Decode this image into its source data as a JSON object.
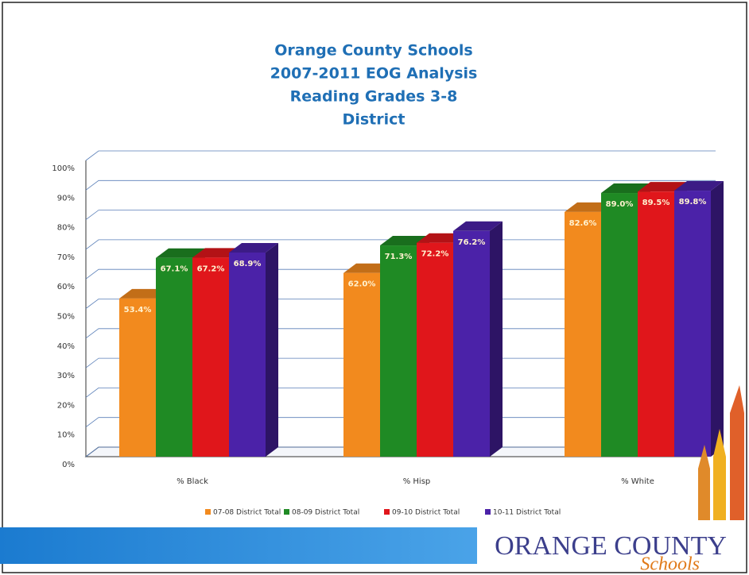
{
  "chart_data": {
    "type": "bar3d",
    "title": [
      "Orange County Schools",
      "2007-2011 EOG Analysis",
      "Reading Grades 3-8",
      "District"
    ],
    "categories": [
      "% Black",
      "% Hisp",
      "% White"
    ],
    "series": [
      {
        "name": "07-08 District Total",
        "color": "#f28a1e",
        "values": [
          53.4,
          62.0,
          82.6
        ],
        "value_labels": [
          "53.4%",
          "62.0%",
          "82.6%"
        ]
      },
      {
        "name": "08-09 District Total",
        "color": "#1f8a24",
        "values": [
          67.1,
          71.3,
          89.0
        ],
        "value_labels": [
          "67.1%",
          "71.3%",
          "89.0%"
        ]
      },
      {
        "name": "09-10 District Total",
        "color": "#e0161b",
        "values": [
          67.2,
          72.2,
          89.5
        ],
        "value_labels": [
          "67.2%",
          "72.2%",
          "89.5%"
        ]
      },
      {
        "name": "10-11 District Total",
        "color": "#4b22a8",
        "values": [
          68.9,
          76.2,
          89.8
        ],
        "value_labels": [
          "68.9%",
          "76.2%",
          "89.8%"
        ]
      }
    ],
    "ylim": [
      0,
      100
    ],
    "yticks": [
      {
        "value": 0,
        "label": "0%"
      },
      {
        "value": 10,
        "label": "10%"
      },
      {
        "value": 20,
        "label": "20%"
      },
      {
        "value": 30,
        "label": "30%"
      },
      {
        "value": 40,
        "label": "40%"
      },
      {
        "value": 50,
        "label": "50%"
      },
      {
        "value": 60,
        "label": "60%"
      },
      {
        "value": 70,
        "label": "70%"
      },
      {
        "value": 80,
        "label": "80%"
      },
      {
        "value": 90,
        "label": "90%"
      },
      {
        "value": 100,
        "label": "100%"
      }
    ],
    "grid": true,
    "legend": "bottom"
  },
  "logo": {
    "name": "ORANGE COUNTY",
    "tagline": "Schools"
  }
}
